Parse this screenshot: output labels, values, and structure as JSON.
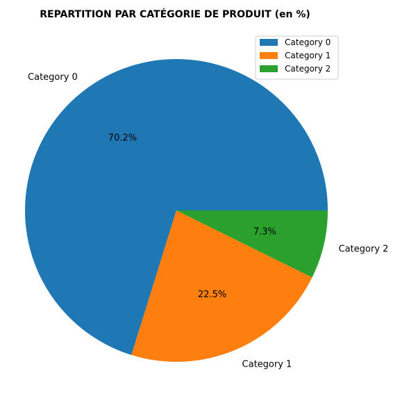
{
  "chart_data": {
    "type": "pie",
    "title": "REPARTITION PAR CATÉGORIE DE PRODUIT (en %)",
    "categories": [
      "Category 0",
      "Category 1",
      "Category 2"
    ],
    "values": [
      70.2,
      22.5,
      7.3
    ],
    "percent_labels": [
      "70.2%",
      "22.5%",
      "7.3%"
    ],
    "colors": [
      "#1f77b4",
      "#ff7f0e",
      "#2ca02c"
    ],
    "start_angle_deg": 0,
    "direction": "counterclockwise",
    "legend": {
      "position": "top-right",
      "entries": [
        "Category 0",
        "Category 1",
        "Category 2"
      ]
    }
  }
}
